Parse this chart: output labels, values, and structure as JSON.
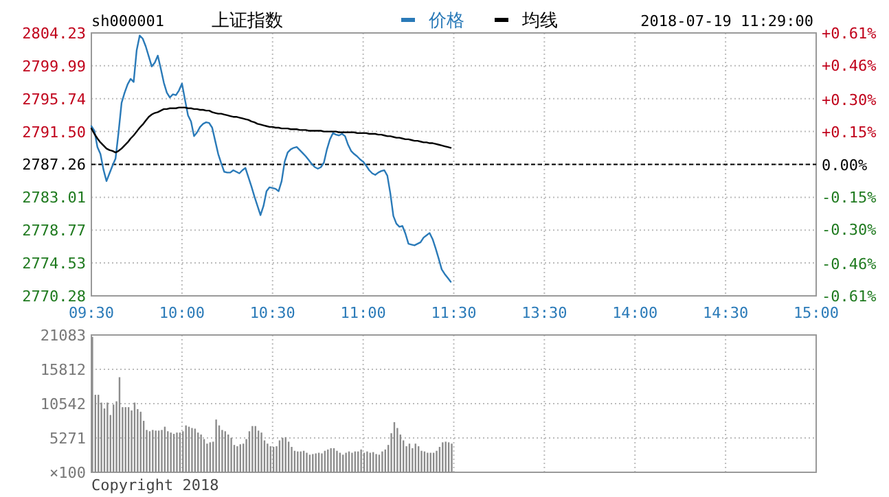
{
  "chart_data": [
    {
      "type": "line",
      "title": "上证指数",
      "subtitle": "sh000001",
      "annotations": [
        "2018-07-19 11:29:00"
      ],
      "legend": "top",
      "grid": true,
      "categories": [
        "09:30",
        null,
        null,
        null,
        null,
        null,
        null,
        null,
        null,
        null,
        null,
        null,
        null,
        null,
        null,
        null,
        null,
        null,
        null,
        null,
        null,
        null,
        null,
        null,
        null,
        null,
        null,
        null,
        null,
        null,
        "10:00",
        null,
        null,
        null,
        null,
        null,
        null,
        null,
        null,
        null,
        null,
        null,
        null,
        null,
        null,
        null,
        null,
        null,
        null,
        null,
        null,
        null,
        null,
        null,
        null,
        null,
        null,
        null,
        null,
        null,
        "10:30",
        null,
        null,
        null,
        null,
        null,
        null,
        null,
        null,
        null,
        null,
        null,
        null,
        null,
        null,
        null,
        null,
        null,
        null,
        null,
        null,
        null,
        null,
        null,
        null,
        null,
        null,
        null,
        null,
        null,
        "11:00",
        null,
        null,
        null,
        null,
        null,
        null,
        null,
        null,
        null,
        null,
        null,
        null,
        null,
        null,
        null,
        null,
        null,
        null,
        null,
        null,
        null,
        null,
        null,
        null,
        null,
        null,
        null,
        null,
        null,
        "11:30",
        null,
        null,
        null,
        null,
        null,
        null,
        null,
        null,
        null,
        null,
        null,
        null,
        null,
        null,
        null,
        null,
        null,
        null,
        null,
        null,
        null,
        null,
        null,
        null,
        null,
        null,
        null,
        null,
        null,
        "13:30",
        null,
        null,
        null,
        null,
        null,
        null,
        null,
        null,
        null,
        null,
        null,
        null,
        null,
        null,
        null,
        null,
        null,
        null,
        null,
        null,
        null,
        null,
        null,
        null,
        null,
        null,
        null,
        null,
        null,
        "14:00",
        null,
        null,
        null,
        null,
        null,
        null,
        null,
        null,
        null,
        null,
        null,
        null,
        null,
        null,
        null,
        null,
        null,
        null,
        null,
        null,
        null,
        null,
        null,
        null,
        null,
        null,
        null,
        null,
        null,
        "14:30",
        null,
        null,
        null,
        null,
        null,
        null,
        null,
        null,
        null,
        null,
        null,
        null,
        null,
        null,
        null,
        null,
        null,
        null,
        null,
        null,
        null,
        null,
        null,
        null,
        null,
        null,
        null,
        null,
        null,
        "15:00"
      ],
      "ylim": [
        2770.28,
        2804.23
      ],
      "yticks": [
        2770.28,
        2774.53,
        2778.77,
        2783.01,
        2787.26,
        {
          "value": 2791.5,
          "label": "2791.50"
        },
        2795.74,
        2799.99,
        2804.23
      ],
      "y2lim": [
        -0.61,
        0.61
      ],
      "y2ticks": [
        {
          "value": -0.61,
          "label": "-0.61%"
        },
        {
          "value": -0.46,
          "label": "-0.46%"
        },
        {
          "value": -0.3,
          "label": "-0.30%"
        },
        {
          "value": -0.15,
          "label": "-0.15%"
        },
        {
          "value": 0,
          "label": "0.00%"
        },
        {
          "value": 0.15,
          "label": "+0.15%"
        },
        {
          "value": 0.3,
          "label": "+0.30%"
        },
        {
          "value": 0.46,
          "label": "+0.46%"
        },
        {
          "value": 0.61,
          "label": "+0.61%"
        }
      ],
      "ref_lines": [
        {
          "axis": "y",
          "value": 2787.26,
          "line_style": "dashed",
          "color": "#000000"
        }
      ],
      "series": [
        {
          "name": "价格",
          "color": "#2a7ab8",
          "values": [
            2792.2,
            2791.6,
            2789.5,
            2788.6,
            2786.6,
            2785.1,
            2786.1,
            2787.1,
            2788.0,
            2791.4,
            2795.2,
            2796.5,
            2797.6,
            2798.3,
            2797.9,
            2802.0,
            2803.9,
            2803.5,
            2802.5,
            2801.2,
            2799.9,
            2800.4,
            2801.3,
            2799.6,
            2797.8,
            2796.5,
            2795.9,
            2796.3,
            2796.2,
            2796.8,
            2797.7,
            2795.6,
            2793.6,
            2792.8,
            2790.9,
            2791.4,
            2792.1,
            2792.5,
            2792.7,
            2792.6,
            2792.0,
            2790.3,
            2788.6,
            2787.4,
            2786.3,
            2786.2,
            2786.2,
            2786.5,
            2786.3,
            2786.1,
            2786.5,
            2786.8,
            2785.6,
            2784.4,
            2783.1,
            2781.9,
            2780.7,
            2781.9,
            2783.8,
            2784.3,
            2784.2,
            2784.1,
            2783.8,
            2785.1,
            2787.6,
            2788.8,
            2789.2,
            2789.4,
            2789.5,
            2789.1,
            2788.7,
            2788.3,
            2787.8,
            2787.3,
            2786.9,
            2786.7,
            2786.9,
            2787.5,
            2789.2,
            2790.5,
            2791.3,
            2791.1,
            2791.0,
            2791.2,
            2790.9,
            2789.8,
            2789.0,
            2788.6,
            2788.3,
            2787.9,
            2787.6,
            2787.1,
            2786.5,
            2786.1,
            2785.9,
            2786.2,
            2786.4,
            2786.5,
            2785.8,
            2783.5,
            2780.6,
            2779.6,
            2779.2,
            2779.3,
            2778.3,
            2777.0,
            2776.9,
            2776.8,
            2777.0,
            2777.2,
            2777.8,
            2778.1,
            2778.4,
            2777.6,
            2776.4,
            2775.1,
            2773.7,
            2773.1,
            2772.6,
            2772.1,
            null,
            null,
            null,
            null,
            null,
            null,
            null,
            null,
            null,
            null,
            null,
            null,
            null,
            null,
            null,
            null,
            null,
            null,
            null,
            null,
            null,
            null,
            null,
            null,
            null,
            null,
            null,
            null,
            null,
            null,
            null,
            null,
            null,
            null,
            null,
            null,
            null,
            null,
            null,
            null,
            null,
            null,
            null,
            null,
            null,
            null,
            null,
            null,
            null,
            null,
            null,
            null,
            null,
            null,
            null,
            null,
            null,
            null,
            null,
            null,
            null,
            null,
            null,
            null,
            null,
            null,
            null,
            null,
            null,
            null,
            null,
            null,
            null,
            null,
            null,
            null,
            null,
            null,
            null,
            null,
            null,
            null,
            null,
            null,
            null,
            null,
            null,
            null,
            null,
            null,
            null,
            null,
            null,
            null,
            null,
            null,
            null,
            null,
            null,
            null,
            null,
            null,
            null,
            null,
            null,
            null,
            null,
            null,
            null,
            null,
            null,
            null,
            null,
            null,
            null,
            null,
            null,
            null,
            null,
            null,
            null
          ]
        },
        {
          "name": "均线",
          "color": "#000000",
          "values": [
            2791.9,
            2791.2,
            2790.6,
            2790.1,
            2789.7,
            2789.3,
            2789.1,
            2789.0,
            2788.8,
            2789.0,
            2789.3,
            2789.7,
            2790.1,
            2790.6,
            2791.0,
            2791.5,
            2792.0,
            2792.4,
            2792.9,
            2793.4,
            2793.7,
            2793.9,
            2794.0,
            2794.2,
            2794.4,
            2794.4,
            2794.5,
            2794.5,
            2794.5,
            2794.6,
            2794.6,
            2794.6,
            2794.5,
            2794.5,
            2794.4,
            2794.4,
            2794.3,
            2794.3,
            2794.2,
            2794.2,
            2794.0,
            2793.9,
            2793.8,
            2793.8,
            2793.7,
            2793.6,
            2793.5,
            2793.4,
            2793.4,
            2793.3,
            2793.2,
            2793.1,
            2793.0,
            2792.8,
            2792.7,
            2792.5,
            2792.4,
            2792.3,
            2792.2,
            2792.1,
            2792.1,
            2792.0,
            2792.0,
            2791.9,
            2791.9,
            2791.9,
            2791.8,
            2791.8,
            2791.8,
            2791.7,
            2791.7,
            2791.7,
            2791.6,
            2791.6,
            2791.6,
            2791.6,
            2791.6,
            2791.5,
            2791.5,
            2791.5,
            2791.5,
            2791.5,
            2791.4,
            2791.4,
            2791.4,
            2791.4,
            2791.4,
            2791.4,
            2791.3,
            2791.3,
            2791.3,
            2791.3,
            2791.2,
            2791.2,
            2791.2,
            2791.1,
            2791.1,
            2791.0,
            2790.9,
            2790.9,
            2790.8,
            2790.7,
            2790.7,
            2790.6,
            2790.5,
            2790.5,
            2790.4,
            2790.3,
            2790.3,
            2790.2,
            2790.1,
            2790.1,
            2790.0,
            2790.0,
            2789.9,
            2789.8,
            2789.7,
            2789.6,
            2789.5,
            2789.4,
            null,
            null,
            null,
            null,
            null,
            null,
            null,
            null,
            null,
            null,
            null,
            null,
            null,
            null,
            null,
            null,
            null,
            null,
            null,
            null,
            null,
            null,
            null,
            null,
            null,
            null,
            null,
            null,
            null,
            null,
            null,
            null,
            null,
            null,
            null,
            null,
            null,
            null,
            null,
            null,
            null,
            null,
            null,
            null,
            null,
            null,
            null,
            null,
            null,
            null,
            null,
            null,
            null,
            null,
            null,
            null,
            null,
            null,
            null,
            null,
            null,
            null,
            null,
            null,
            null,
            null,
            null,
            null,
            null,
            null,
            null,
            null,
            null,
            null,
            null,
            null,
            null,
            null,
            null,
            null,
            null,
            null,
            null,
            null,
            null,
            null,
            null,
            null,
            null,
            null,
            null,
            null,
            null,
            null,
            null,
            null,
            null,
            null,
            null,
            null,
            null,
            null,
            null,
            null,
            null,
            null,
            null,
            null,
            null,
            null,
            null,
            null,
            null,
            null,
            null,
            null,
            null,
            null,
            null,
            null,
            null
          ]
        }
      ]
    },
    {
      "type": "bar",
      "annotations": [
        "Copyright 2018"
      ],
      "grid": true,
      "tick_labels": "y",
      "ylabel": "×100",
      "categories": [
        null,
        null,
        null,
        null,
        null,
        null,
        null,
        null,
        null,
        null,
        null,
        null,
        null,
        null,
        null,
        null,
        null,
        null,
        null,
        null,
        null,
        null,
        null,
        null,
        null,
        null,
        null,
        null,
        null,
        null,
        null,
        null,
        null,
        null,
        null,
        null,
        null,
        null,
        null,
        null,
        null,
        null,
        null,
        null,
        null,
        null,
        null,
        null,
        null,
        null,
        null,
        null,
        null,
        null,
        null,
        null,
        null,
        null,
        null,
        null,
        null,
        null,
        null,
        null,
        null,
        null,
        null,
        null,
        null,
        null,
        null,
        null,
        null,
        null,
        null,
        null,
        null,
        null,
        null,
        null,
        null,
        null,
        null,
        null,
        null,
        null,
        null,
        null,
        null,
        null,
        null,
        null,
        null,
        null,
        null,
        null,
        null,
        null,
        null,
        null,
        null,
        null,
        null,
        null,
        null,
        null,
        null,
        null,
        null,
        null,
        null,
        null,
        null,
        null,
        null,
        null,
        null,
        null,
        null,
        null,
        null,
        null,
        null,
        null,
        null,
        null,
        null,
        null,
        null,
        null,
        null,
        null,
        null,
        null,
        null,
        null,
        null,
        null,
        null,
        null,
        null,
        null,
        null,
        null,
        null,
        null,
        null,
        null,
        null,
        null,
        null,
        null,
        null,
        null,
        null,
        null,
        null,
        null,
        null,
        null,
        null,
        null,
        null,
        null,
        null,
        null,
        null,
        null,
        null,
        null,
        null,
        null,
        null,
        null,
        null,
        null,
        null,
        null,
        null,
        null,
        null,
        null,
        null,
        null,
        null,
        null,
        null,
        null,
        null,
        null,
        null,
        null,
        null,
        null,
        null,
        null,
        null,
        null,
        null,
        null,
        null,
        null,
        null,
        null,
        null,
        null,
        null,
        null,
        null,
        null,
        null,
        null,
        null,
        null,
        null,
        null,
        null,
        null,
        null,
        null,
        null,
        null,
        null,
        null,
        null,
        null,
        null,
        null,
        null,
        null,
        null,
        null,
        null,
        null,
        null,
        null,
        null,
        null,
        null,
        null,
        null
      ],
      "ylim": [
        0,
        21083
      ],
      "yticks": [
        {
          "value": 0,
          "label": null
        },
        5271,
        10542,
        15812,
        21083
      ],
      "series": [
        {
          "color": "#8c8c8c",
          "values": [
            20800,
            11900,
            11900,
            10700,
            9800,
            10700,
            8800,
            10400,
            10900,
            14600,
            10000,
            10000,
            10000,
            9500,
            10700,
            9700,
            9300,
            7900,
            6500,
            6300,
            6500,
            6400,
            6400,
            6500,
            7000,
            6300,
            6100,
            5900,
            6100,
            6100,
            6300,
            7200,
            7000,
            6800,
            6700,
            6100,
            5800,
            5100,
            4400,
            4600,
            4700,
            8100,
            7200,
            6500,
            6300,
            5800,
            5300,
            4200,
            4000,
            4300,
            4400,
            5100,
            6300,
            7100,
            7100,
            6400,
            6100,
            4900,
            4400,
            4000,
            3900,
            4000,
            4900,
            5300,
            5400,
            4700,
            3900,
            3300,
            3200,
            3200,
            3300,
            3000,
            2700,
            2800,
            2900,
            3000,
            2900,
            3300,
            3500,
            3700,
            3700,
            3300,
            3000,
            2700,
            3000,
            3200,
            3000,
            3200,
            3200,
            3500,
            3000,
            3200,
            3000,
            3100,
            2800,
            2700,
            3200,
            3500,
            4200,
            6000,
            7700,
            6800,
            5800,
            4900,
            4000,
            4400,
            3700,
            4400,
            4000,
            3300,
            3200,
            3000,
            3000,
            3000,
            3300,
            3900,
            4600,
            4700,
            4600,
            4400,
            null,
            null,
            null,
            null,
            null,
            null,
            null,
            null,
            null,
            null,
            null,
            null,
            null,
            null,
            null,
            null,
            null,
            null,
            null,
            null,
            null,
            null,
            null,
            null,
            null,
            null,
            null,
            null,
            null,
            null,
            null,
            null,
            null,
            null,
            null,
            null,
            null,
            null,
            null,
            null,
            null,
            null,
            null,
            null,
            null,
            null,
            null,
            null,
            null,
            null,
            null,
            null,
            null,
            null,
            null,
            null,
            null,
            null,
            null,
            null,
            null,
            null,
            null,
            null,
            null,
            null,
            null,
            null,
            null,
            null,
            null,
            null,
            null,
            null,
            null,
            null,
            null,
            null,
            null,
            null,
            null,
            null,
            null,
            null,
            null,
            null,
            null,
            null,
            null,
            null,
            null,
            null,
            null,
            null,
            null,
            null,
            null,
            null,
            null,
            null,
            null,
            null,
            null,
            null,
            null,
            null,
            null,
            null,
            null,
            null,
            null,
            null,
            null,
            null,
            null,
            null,
            null,
            null,
            null,
            null,
            null
          ]
        }
      ]
    }
  ]
}
